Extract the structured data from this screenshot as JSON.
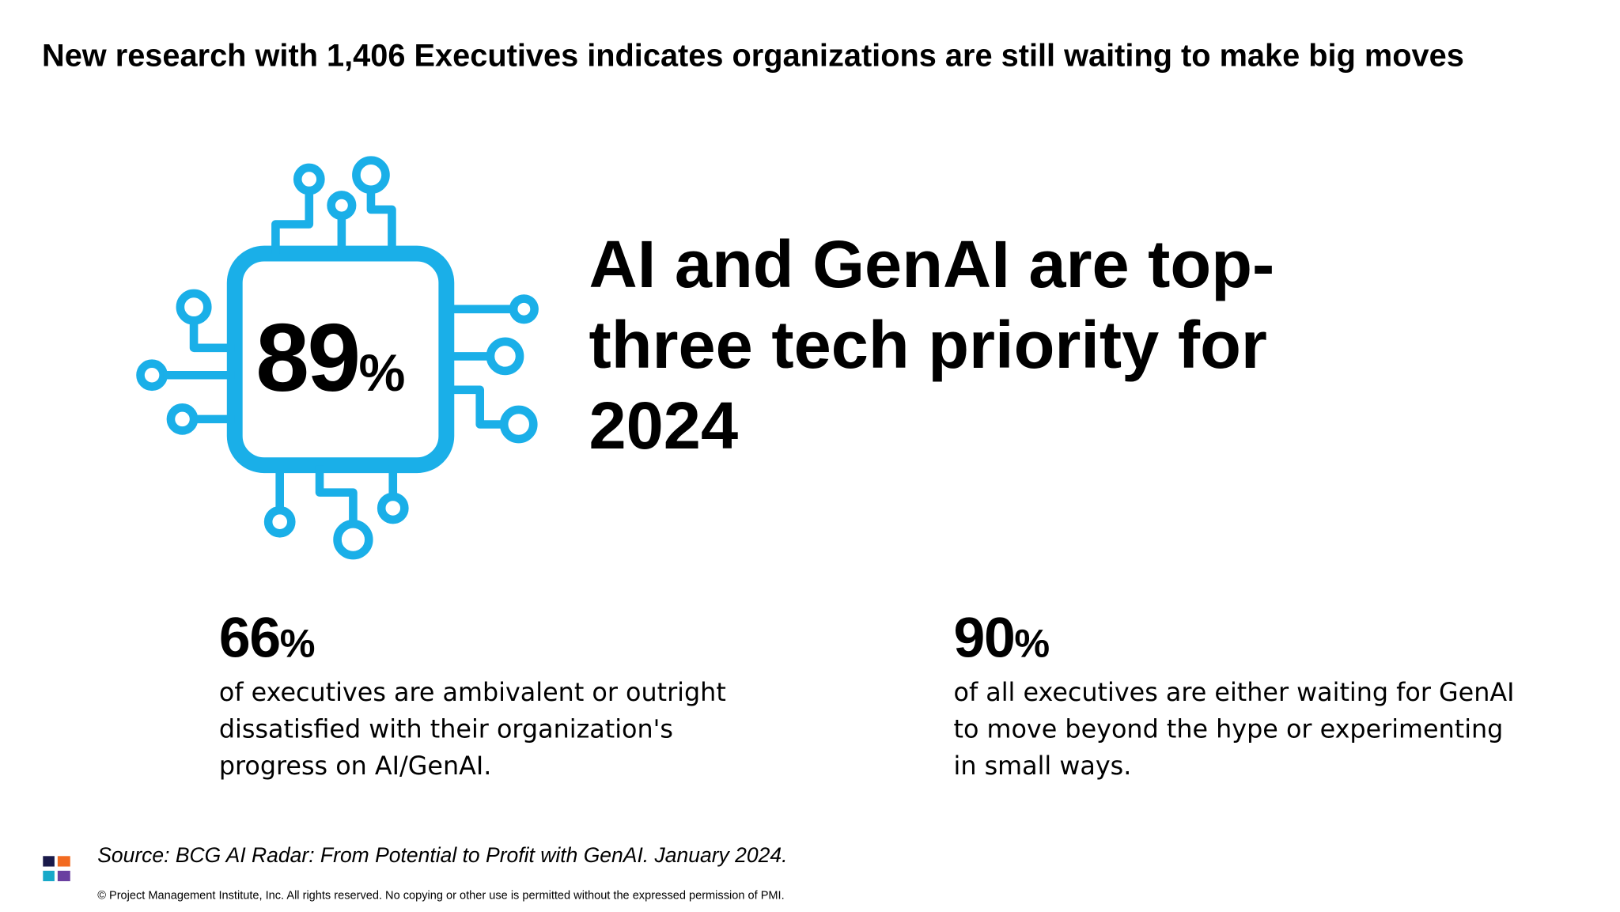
{
  "header": {
    "title": "New research with 1,406 Executives indicates organizations are still waiting to make big moves"
  },
  "hero": {
    "value": "89",
    "unit": "%",
    "headline": "AI and GenAI are top-three tech priority for 2024"
  },
  "stats": [
    {
      "value": "66",
      "unit": "%",
      "text": "of executives are ambivalent or outright dissatisfied with their organization's progress on AI/GenAI."
    },
    {
      "value": "90",
      "unit": "%",
      "text": "of all executives are either waiting for GenAI to move beyond the hype or experimenting in small ways."
    }
  ],
  "footer": {
    "source": "Source: BCG AI Radar: From Potential to Profit with GenAI. January 2024.",
    "copyright": "© Project Management Institute, Inc. All rights reserved. No copying or other use is permitted without the expressed permission of PMI."
  }
}
